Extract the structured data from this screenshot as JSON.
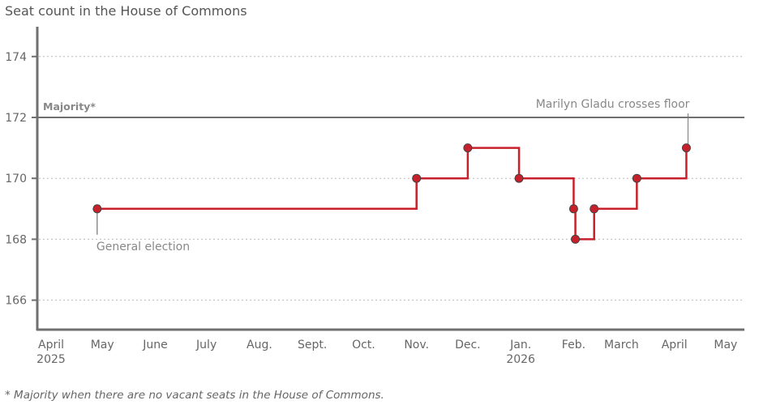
{
  "chart_data": {
    "type": "line",
    "step": "after",
    "title": "Seat count in the House of Commons",
    "ylim": [
      165,
      175
    ],
    "yticks": [
      166,
      168,
      170,
      172,
      174
    ],
    "xlim": [
      "2025-04-01",
      "2026-05-15"
    ],
    "xticks": [
      {
        "date": "2025-04-01",
        "label": "April",
        "sub": "2025"
      },
      {
        "date": "2025-05-01",
        "label": "May"
      },
      {
        "date": "2025-06-01",
        "label": "June"
      },
      {
        "date": "2025-07-01",
        "label": "July"
      },
      {
        "date": "2025-08-01",
        "label": "Aug."
      },
      {
        "date": "2025-09-01",
        "label": "Sept."
      },
      {
        "date": "2025-10-01",
        "label": "Oct."
      },
      {
        "date": "2025-11-01",
        "label": "Nov."
      },
      {
        "date": "2025-12-01",
        "label": "Dec."
      },
      {
        "date": "2026-01-01",
        "label": "Jan.",
        "sub": "2026"
      },
      {
        "date": "2026-02-01",
        "label": "Feb."
      },
      {
        "date": "2026-03-01",
        "label": "March"
      },
      {
        "date": "2026-04-01",
        "label": "April"
      },
      {
        "date": "2026-05-01",
        "label": "May"
      }
    ],
    "series": [
      {
        "name": "Seat count",
        "color": "#c8202a",
        "points": [
          {
            "date": "2025-04-28",
            "value": 169
          },
          {
            "date": "2025-11-01",
            "value": 170
          },
          {
            "date": "2025-12-01",
            "value": 171
          },
          {
            "date": "2025-12-31",
            "value": 170
          },
          {
            "date": "2026-02-01",
            "value": 169
          },
          {
            "date": "2026-02-02",
            "value": 168
          },
          {
            "date": "2026-02-13",
            "value": 169
          },
          {
            "date": "2026-03-10",
            "value": 170
          },
          {
            "date": "2026-04-08",
            "value": 171
          }
        ],
        "end_date": "2026-04-08"
      }
    ],
    "reference_line": {
      "value": 172,
      "label": "Majority*"
    },
    "annotations": [
      {
        "date": "2025-04-28",
        "value": 169,
        "text": "General election",
        "position": "below"
      },
      {
        "date": "2026-04-08",
        "value": 171,
        "text": "Marilyn Gladu crosses floor",
        "position": "above"
      }
    ],
    "footnote": "* Majority when there are no vacant seats in the House of Commons."
  }
}
